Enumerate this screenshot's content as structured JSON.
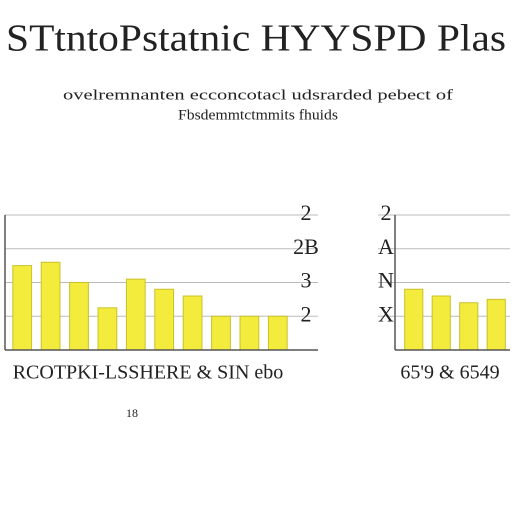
{
  "header": {
    "title": "STtntoPstatnic HYYSPD Plas",
    "subtitle": [
      "ovelremnanten ecconcotacl udsrarded pebect of",
      "Fbsdemmtctmmits fhuids"
    ]
  },
  "chart_data": [
    {
      "type": "bar",
      "color": "#f4ec3c",
      "xlabel": "RCOTPKI-LSSHERE  & SIN ebo",
      "footnote": "18",
      "categories": [
        null,
        null,
        null,
        null,
        null,
        null,
        null,
        null,
        null,
        null
      ],
      "values": [
        2.5,
        2.6,
        2.0,
        1.25,
        2.1,
        1.8,
        1.6,
        1.0,
        1.0,
        1.0
      ],
      "ylim": [
        0,
        4
      ],
      "yticks": [
        {
          "value": 4,
          "label": "2"
        },
        {
          "value": 3,
          "label": "2B"
        },
        {
          "value": 2,
          "label": "3"
        },
        {
          "value": 1,
          "label": "2"
        }
      ],
      "grid": true,
      "tick_side": "right"
    },
    {
      "type": "bar",
      "color": "#f4ec3c",
      "xlabel": "65'9 & 6549",
      "categories": [
        null,
        null,
        null,
        null
      ],
      "values": [
        1.8,
        1.6,
        1.4,
        1.5
      ],
      "ylim": [
        0,
        4
      ],
      "yticks": [
        {
          "value": 4,
          "label": "2"
        },
        {
          "value": 3,
          "label": "A"
        },
        {
          "value": 2,
          "label": "N"
        },
        {
          "value": 1,
          "label": "X"
        }
      ],
      "grid": true,
      "tick_side": "left"
    }
  ]
}
